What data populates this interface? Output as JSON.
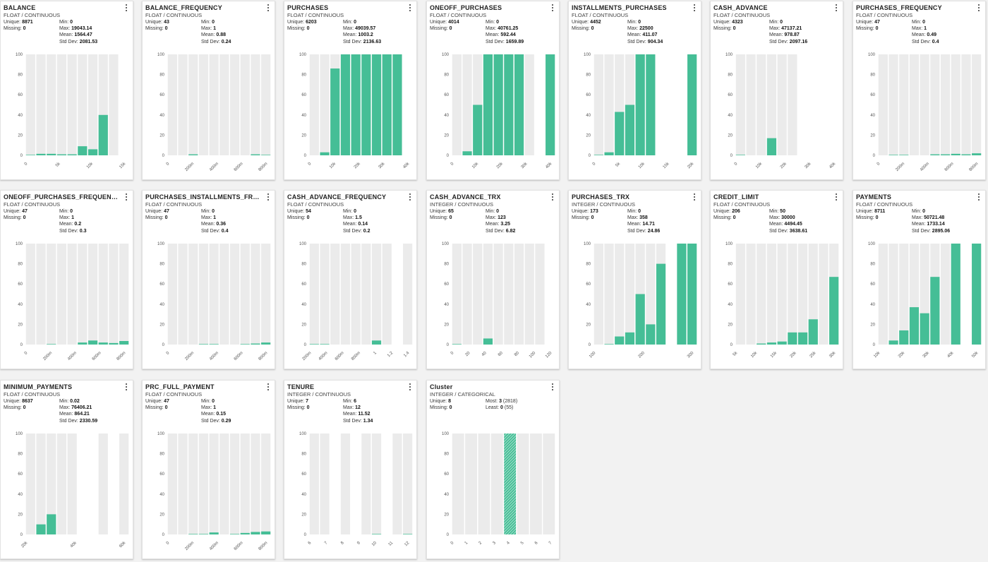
{
  "colors": {
    "bar": "#45be96",
    "track": "#ebebeb"
  },
  "labels": {
    "unique": "Unique: ",
    "missing": "Missing: ",
    "min": "Min: ",
    "max": "Max: ",
    "mean": "Mean: ",
    "std": "Std Dev: ",
    "most": "Most: ",
    "least": "Least: "
  },
  "cards": [
    {
      "title": "BALANCE",
      "subtitle": "FLOAT / CONTINUOUS",
      "unique": "8871",
      "missing": "0",
      "min": "0",
      "max": "19043.14",
      "mean": "1564.47",
      "std": "2081.53",
      "chart_data": {
        "type": "bar",
        "ylim": [
          0,
          100
        ],
        "y_ticks": [
          "0",
          "20",
          "40",
          "60",
          "80",
          "100"
        ],
        "x_ticks": [
          "0",
          "5k",
          "10k",
          "15k"
        ],
        "tracks": [
          1,
          1,
          1,
          1,
          1,
          1,
          1,
          1,
          1,
          0
        ],
        "values": [
          0.5,
          1.5,
          1.5,
          1,
          1,
          9,
          6,
          40,
          0,
          0
        ]
      }
    },
    {
      "title": "BALANCE_FREQUENCY",
      "subtitle": "FLOAT / CONTINUOUS",
      "unique": "43",
      "missing": "0",
      "min": "0",
      "max": "1",
      "mean": "0.88",
      "std": "0.24",
      "chart_data": {
        "type": "bar",
        "ylim": [
          0,
          100
        ],
        "y_ticks": [
          "0",
          "20",
          "40",
          "60",
          "80",
          "100"
        ],
        "x_ticks": [
          "0",
          "200m",
          "400m",
          "600m",
          "800m"
        ],
        "tracks": [
          1,
          1,
          1,
          1,
          1,
          1,
          1,
          1,
          1,
          1
        ],
        "values": [
          0,
          0,
          1,
          0,
          0,
          0,
          0,
          0,
          1,
          0.5
        ]
      }
    },
    {
      "title": "PURCHASES",
      "subtitle": "FLOAT / CONTINUOUS",
      "unique": "6203",
      "missing": "0",
      "min": "0",
      "max": "49039.57",
      "mean": "1003.2",
      "std": "2136.63",
      "chart_data": {
        "type": "bar",
        "ylim": [
          0,
          100
        ],
        "y_ticks": [
          "0",
          "20",
          "40",
          "60",
          "80",
          "100"
        ],
        "x_ticks": [
          "0",
          "10k",
          "20k",
          "30k",
          "40k"
        ],
        "tracks": [
          1,
          1,
          1,
          1,
          1,
          1,
          1,
          1,
          1,
          0
        ],
        "values": [
          0,
          3,
          86,
          100,
          100,
          100,
          100,
          100,
          100,
          0
        ]
      }
    },
    {
      "title": "ONEOFF_PURCHASES",
      "subtitle": "FLOAT / CONTINUOUS",
      "unique": "4014",
      "missing": "0",
      "min": "0",
      "max": "40761.25",
      "mean": "592.44",
      "std": "1659.89",
      "chart_data": {
        "type": "bar",
        "ylim": [
          0,
          100
        ],
        "y_ticks": [
          "0",
          "20",
          "40",
          "60",
          "80",
          "100"
        ],
        "x_ticks": [
          "0",
          "10k",
          "20k",
          "30k",
          "40k"
        ],
        "tracks": [
          1,
          1,
          1,
          1,
          1,
          1,
          1,
          1,
          0,
          1
        ],
        "values": [
          0,
          4,
          50,
          100,
          100,
          100,
          100,
          0,
          0,
          100
        ]
      }
    },
    {
      "title": "INSTALLMENTS_PURCHASES",
      "subtitle": "FLOAT / CONTINUOUS",
      "unique": "4452",
      "missing": "0",
      "min": "0",
      "max": "22500",
      "mean": "411.07",
      "std": "904.34",
      "chart_data": {
        "type": "bar",
        "ylim": [
          0,
          100
        ],
        "y_ticks": [
          "0",
          "20",
          "40",
          "60",
          "80",
          "100"
        ],
        "x_ticks": [
          "0",
          "5k",
          "10k",
          "15k",
          "20k"
        ],
        "tracks": [
          1,
          1,
          1,
          1,
          1,
          1,
          0,
          0,
          0,
          1
        ],
        "values": [
          0.5,
          3,
          43,
          50,
          100,
          100,
          0,
          0,
          0,
          100
        ]
      }
    },
    {
      "title": "CASH_ADVANCE",
      "subtitle": "FLOAT / CONTINUOUS",
      "unique": "4323",
      "missing": "0",
      "min": "0",
      "max": "47137.21",
      "mean": "978.87",
      "std": "2097.16",
      "chart_data": {
        "type": "bar",
        "ylim": [
          0,
          100
        ],
        "y_ticks": [
          "0",
          "20",
          "40",
          "60",
          "80",
          "100"
        ],
        "x_ticks": [
          "0",
          "10k",
          "20k",
          "30k",
          "40k"
        ],
        "tracks": [
          1,
          1,
          1,
          1,
          1,
          1,
          0,
          0,
          0,
          0
        ],
        "values": [
          0.5,
          0,
          0,
          17,
          0,
          0,
          0,
          0,
          0,
          0
        ]
      }
    },
    {
      "title": "PURCHASES_FREQUENCY",
      "subtitle": "FLOAT / CONTINUOUS",
      "unique": "47",
      "missing": "0",
      "min": "0",
      "max": "1",
      "mean": "0.49",
      "std": "0.4",
      "chart_data": {
        "type": "bar",
        "ylim": [
          0,
          100
        ],
        "y_ticks": [
          "0",
          "20",
          "40",
          "60",
          "80",
          "100"
        ],
        "x_ticks": [
          "0",
          "200m",
          "400m",
          "600m",
          "800m"
        ],
        "tracks": [
          1,
          1,
          1,
          1,
          1,
          1,
          1,
          1,
          1,
          1
        ],
        "values": [
          0,
          0.5,
          0.5,
          0,
          0,
          1,
          1,
          1.5,
          1,
          2
        ]
      }
    },
    {
      "title": "ONEOFF_PURCHASES_FREQUENCY",
      "subtitle": "FLOAT / CONTINUOUS",
      "unique": "47",
      "missing": "0",
      "min": "0",
      "max": "1",
      "mean": "0.2",
      "std": "0.3",
      "chart_data": {
        "type": "bar",
        "ylim": [
          0,
          100
        ],
        "y_ticks": [
          "0",
          "20",
          "40",
          "60",
          "80",
          "100"
        ],
        "x_ticks": [
          "0",
          "200m",
          "400m",
          "600m",
          "800m"
        ],
        "tracks": [
          1,
          1,
          1,
          1,
          1,
          1,
          1,
          1,
          1,
          1
        ],
        "values": [
          0,
          0,
          0.5,
          0,
          0,
          2,
          4,
          2,
          1.5,
          3.5
        ]
      }
    },
    {
      "title": "PURCHASES_INSTALLMENTS_FRE...",
      "subtitle": "FLOAT / CONTINUOUS",
      "unique": "47",
      "missing": "0",
      "min": "0",
      "max": "1",
      "mean": "0.36",
      "std": "0.4",
      "chart_data": {
        "type": "bar",
        "ylim": [
          0,
          100
        ],
        "y_ticks": [
          "0",
          "20",
          "40",
          "60",
          "80",
          "100"
        ],
        "x_ticks": [
          "0",
          "200m",
          "400m",
          "600m",
          "800m"
        ],
        "tracks": [
          1,
          1,
          1,
          1,
          1,
          1,
          1,
          1,
          1,
          1
        ],
        "values": [
          0,
          0,
          0,
          0.5,
          0.5,
          0,
          0,
          0.5,
          1,
          2
        ]
      }
    },
    {
      "title": "CASH_ADVANCE_FREQUENCY",
      "subtitle": "FLOAT / CONTINUOUS",
      "unique": "54",
      "missing": "0",
      "min": "0",
      "max": "1.5",
      "mean": "0.14",
      "std": "0.2",
      "chart_data": {
        "type": "bar",
        "ylim": [
          0,
          100
        ],
        "y_ticks": [
          "0",
          "20",
          "40",
          "60",
          "80",
          "100"
        ],
        "x_ticks": [
          "200m",
          "400m",
          "600m",
          "800m",
          "1",
          "1.2",
          "1.4"
        ],
        "tracks": [
          1,
          1,
          1,
          1,
          1,
          1,
          1,
          1,
          0,
          1
        ],
        "values": [
          0.5,
          0.5,
          0,
          0,
          0,
          0,
          4,
          0,
          0,
          0
        ]
      }
    },
    {
      "title": "CASH_ADVANCE_TRX",
      "subtitle": "INTEGER / CONTINUOUS",
      "unique": "65",
      "missing": "0",
      "min": "0",
      "max": "123",
      "mean": "3.25",
      "std": "6.82",
      "chart_data": {
        "type": "bar",
        "ylim": [
          0,
          100
        ],
        "y_ticks": [
          "0",
          "20",
          "40",
          "60",
          "80",
          "100"
        ],
        "x_ticks": [
          "0",
          "20",
          "40",
          "60",
          "80",
          "100",
          "120"
        ],
        "tracks": [
          1,
          1,
          1,
          1,
          1,
          1,
          1,
          1,
          1,
          0
        ],
        "values": [
          0.5,
          0,
          0,
          6,
          0,
          0,
          0,
          0,
          0,
          0
        ]
      }
    },
    {
      "title": "PURCHASES_TRX",
      "subtitle": "INTEGER / CONTINUOUS",
      "unique": "173",
      "missing": "0",
      "min": "0",
      "max": "358",
      "mean": "14.71",
      "std": "24.86",
      "chart_data": {
        "type": "bar",
        "ylim": [
          0,
          100
        ],
        "y_ticks": [
          "0",
          "20",
          "40",
          "60",
          "80",
          "100"
        ],
        "x_ticks": [
          "100",
          "200",
          "300"
        ],
        "tracks": [
          1,
          1,
          1,
          1,
          1,
          1,
          1,
          0,
          1,
          1
        ],
        "values": [
          0,
          0.5,
          8,
          12,
          50,
          20,
          80,
          0,
          100,
          100
        ]
      }
    },
    {
      "title": "CREDIT_LIMIT",
      "subtitle": "FLOAT / CONTINUOUS",
      "unique": "206",
      "missing": "0",
      "min": "50",
      "max": "30000",
      "mean": "4494.45",
      "std": "3638.61",
      "chart_data": {
        "type": "bar",
        "ylim": [
          0,
          100
        ],
        "y_ticks": [
          "0",
          "20",
          "40",
          "60",
          "80",
          "100"
        ],
        "x_ticks": [
          "5k",
          "10k",
          "15k",
          "20k",
          "25k",
          "30k"
        ],
        "tracks": [
          1,
          1,
          1,
          1,
          1,
          1,
          1,
          1,
          1,
          1
        ],
        "values": [
          0,
          0,
          1,
          2,
          3,
          12,
          12,
          25,
          0,
          67
        ]
      }
    },
    {
      "title": "PAYMENTS",
      "subtitle": "FLOAT / CONTINUOUS",
      "unique": "8711",
      "missing": "0",
      "min": "0",
      "max": "50721.48",
      "mean": "1733.14",
      "std": "2895.06",
      "chart_data": {
        "type": "bar",
        "ylim": [
          0,
          100
        ],
        "y_ticks": [
          "0",
          "20",
          "40",
          "60",
          "80",
          "100"
        ],
        "x_ticks": [
          "10k",
          "20k",
          "30k",
          "40k",
          "50k"
        ],
        "tracks": [
          1,
          1,
          1,
          1,
          1,
          1,
          1,
          1,
          0,
          1
        ],
        "values": [
          0,
          4,
          14,
          37,
          31,
          67,
          0,
          100,
          0,
          100
        ]
      }
    },
    {
      "title": "MINIMUM_PAYMENTS",
      "subtitle": "FLOAT / CONTINUOUS",
      "unique": "8637",
      "missing": "0",
      "min": "0.02",
      "max": "76406.21",
      "mean": "864.21",
      "std": "2330.59",
      "chart_data": {
        "type": "bar",
        "ylim": [
          0,
          100
        ],
        "y_ticks": [
          "0",
          "20",
          "40",
          "60",
          "80",
          "100"
        ],
        "x_ticks": [
          "20k",
          "40k",
          "60k"
        ],
        "tracks": [
          1,
          1,
          1,
          1,
          1,
          0,
          0,
          1,
          0,
          1
        ],
        "values": [
          0,
          10,
          20,
          0,
          0,
          0,
          0,
          0,
          0,
          0
        ]
      }
    },
    {
      "title": "PRC_FULL_PAYMENT",
      "subtitle": "FLOAT / CONTINUOUS",
      "unique": "47",
      "missing": "0",
      "min": "0",
      "max": "1",
      "mean": "0.15",
      "std": "0.29",
      "chart_data": {
        "type": "bar",
        "ylim": [
          0,
          100
        ],
        "y_ticks": [
          "0",
          "20",
          "40",
          "60",
          "80",
          "100"
        ],
        "x_ticks": [
          "0",
          "200m",
          "400m",
          "600m",
          "800m"
        ],
        "tracks": [
          1,
          1,
          1,
          1,
          1,
          1,
          1,
          1,
          1,
          1
        ],
        "values": [
          0,
          0,
          0.5,
          0.5,
          2,
          0,
          0.5,
          1.5,
          2.5,
          3
        ]
      }
    },
    {
      "title": "TENURE",
      "subtitle": "INTEGER / CONTINUOUS",
      "unique": "7",
      "missing": "0",
      "min": "6",
      "max": "12",
      "mean": "11.52",
      "std": "1.34",
      "chart_data": {
        "type": "bar",
        "ylim": [
          0,
          100
        ],
        "y_ticks": [
          "0",
          "20",
          "40",
          "60",
          "80",
          "100"
        ],
        "x_ticks": [
          "6",
          "7",
          "8",
          "9",
          "10",
          "11",
          "12"
        ],
        "tracks": [
          1,
          1,
          0,
          1,
          0,
          1,
          1,
          0,
          1,
          1
        ],
        "values": [
          0,
          0,
          0,
          0,
          0,
          0,
          0.5,
          0,
          0,
          0.5
        ]
      }
    },
    {
      "title": "Cluster",
      "subtitle": "INTEGER / CATEGORICAL",
      "unique": "8",
      "missing": "0",
      "most": "3",
      "most_count": "(2818)",
      "least": "0",
      "least_count": "(55)",
      "chart_data": {
        "type": "bar",
        "ylim": [
          0,
          100
        ],
        "y_ticks": [
          "0",
          "20",
          "40",
          "60",
          "80",
          "100"
        ],
        "x_ticks": [
          "0",
          "1",
          "2",
          "3",
          "4",
          "5",
          "6",
          "7"
        ],
        "tracks": [
          1,
          1,
          1,
          1,
          1,
          1,
          1,
          1
        ],
        "values": [
          0,
          0,
          0,
          0,
          100,
          0,
          0,
          0
        ],
        "pattern": true
      }
    }
  ]
}
